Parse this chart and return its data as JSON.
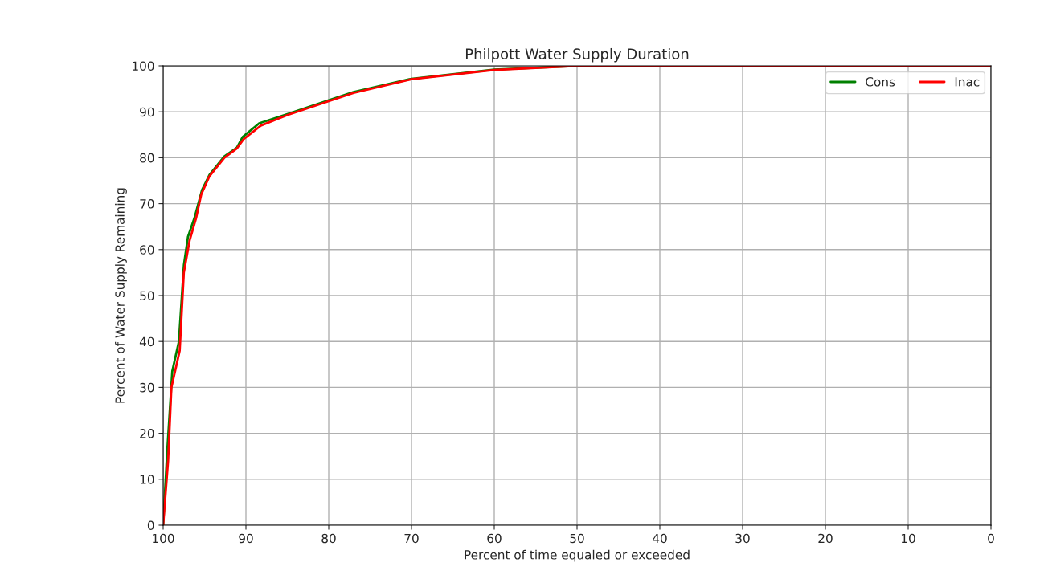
{
  "chart_data": {
    "type": "line",
    "title": "Philpott Water Supply Duration",
    "xlabel": "Percent of time equaled or exceeded",
    "ylabel": "Percent of Water Supply Remaining",
    "xlim": [
      100,
      0
    ],
    "ylim": [
      0,
      100
    ],
    "xticks": [
      100,
      90,
      80,
      70,
      60,
      50,
      40,
      30,
      20,
      10,
      0
    ],
    "yticks": [
      0,
      10,
      20,
      30,
      40,
      50,
      60,
      70,
      80,
      90,
      100
    ],
    "grid": true,
    "legend": "top right",
    "series": [
      {
        "name": "Cons",
        "color": "#008000",
        "x": [
          100,
          99.5,
          98.9,
          98.1,
          97.5,
          97.0,
          96.2,
          95.3,
          94.4,
          92.6,
          91.1,
          90.4,
          88.4,
          85,
          80,
          77,
          70,
          60,
          50,
          0
        ],
        "values": [
          0,
          16.4,
          33.5,
          40,
          56.6,
          62.8,
          67,
          73,
          76.3,
          80.3,
          82.2,
          84.5,
          87.5,
          89.5,
          92.5,
          94.3,
          97.2,
          99.2,
          100,
          100
        ]
      },
      {
        "name": "Inac",
        "color": "#ff0000",
        "x": [
          100,
          99.4,
          99.0,
          98.0,
          97.5,
          96.8,
          96.0,
          95.4,
          94.4,
          92.6,
          91.1,
          90.3,
          88.2,
          85,
          80,
          77,
          70,
          60,
          50,
          0
        ],
        "values": [
          0,
          14,
          30,
          38,
          55,
          62,
          67,
          72,
          76,
          80,
          82,
          84,
          87,
          89.3,
          92.3,
          94.1,
          97.1,
          99.1,
          100,
          100
        ]
      }
    ]
  }
}
